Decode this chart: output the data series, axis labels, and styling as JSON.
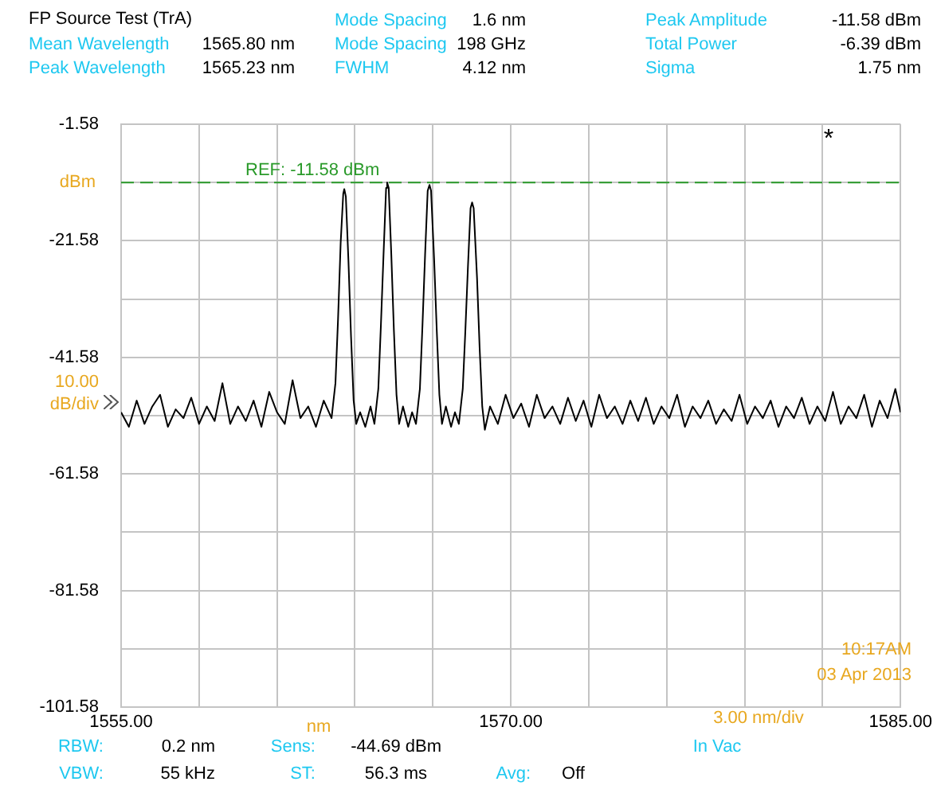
{
  "chart_data": {
    "type": "line",
    "title": "FP Source Test (TrA)",
    "xlabel": "nm",
    "ylabel": "dBm",
    "annotations": [
      "Mode Spacing",
      "1.6 nm",
      "Peak Amplitude",
      "-11.58 dBm",
      "Mean Wavelength",
      "1565.80 nm",
      "Mode Spacing",
      "198 GHz",
      "Total Power",
      "-6.39 dBm",
      "Peak Wavelength",
      "1565.23 nm",
      "FWHM",
      "4.12 nm",
      "Sigma",
      "1.75 nm",
      "10.00 dB/div",
      "3.00 nm/div",
      "10:17AM",
      "03 Apr 2013",
      "RBW:",
      "0.2 nm",
      "Sens:",
      "-44.69 dBm",
      "In Vac",
      "VBW:",
      "55 kHz",
      "ST:",
      "56.3 ms",
      "Avg:",
      "Off",
      "*"
    ],
    "series": [
      {
        "color": "#000000",
        "x": [
          1555,
          1555.3,
          1555.6,
          1555.9,
          1556.2,
          1556.5,
          1556.8,
          1557.1,
          1557.4,
          1557.7,
          1558,
          1558.3,
          1558.6,
          1558.9,
          1559.2,
          1559.5,
          1559.8,
          1560.1,
          1560.4,
          1560.7,
          1561,
          1561.3,
          1561.6,
          1561.9,
          1562.2,
          1562.5,
          1562.8,
          1563.1,
          1563.25,
          1563.35,
          1563.45,
          1563.55,
          1563.59,
          1563.65,
          1563.75,
          1563.85,
          1563.95,
          1564.05,
          1564.2,
          1564.4,
          1564.6,
          1564.75,
          1564.9,
          1565,
          1565.1,
          1565.2,
          1565.24,
          1565.3,
          1565.4,
          1565.5,
          1565.6,
          1565.7,
          1565.85,
          1566.05,
          1566.2,
          1566.35,
          1566.5,
          1566.6,
          1566.7,
          1566.8,
          1566.87,
          1566.93,
          1567.05,
          1567.15,
          1567.25,
          1567.35,
          1567.5,
          1567.7,
          1567.85,
          1568,
          1568.15,
          1568.25,
          1568.35,
          1568.45,
          1568.51,
          1568.57,
          1568.7,
          1568.8,
          1568.9,
          1569,
          1569.2,
          1569.5,
          1569.8,
          1570.1,
          1570.4,
          1570.7,
          1571,
          1571.3,
          1571.6,
          1571.9,
          1572.2,
          1572.5,
          1572.8,
          1573.1,
          1573.4,
          1573.7,
          1574,
          1574.3,
          1574.6,
          1574.9,
          1575.2,
          1575.5,
          1575.8,
          1576.1,
          1576.4,
          1576.7,
          1577,
          1577.3,
          1577.6,
          1577.9,
          1578.2,
          1578.5,
          1578.8,
          1579.1,
          1579.4,
          1579.7,
          1580,
          1580.3,
          1580.6,
          1580.9,
          1581.2,
          1581.5,
          1581.8,
          1582.1,
          1582.4,
          1582.7,
          1583,
          1583.3,
          1583.6,
          1583.9,
          1584.2,
          1584.5,
          1584.8,
          1585
        ],
        "values": [
          -51,
          -53.5,
          -49,
          -53,
          -50,
          -48,
          -53.5,
          -50.5,
          -52,
          -48.5,
          -53,
          -50,
          -52.5,
          -46,
          -53,
          -50,
          -52.5,
          -49,
          -53.5,
          -47.5,
          -51,
          -53,
          -45.5,
          -52,
          -50,
          -53.5,
          -49,
          -52,
          -46,
          -35,
          -22,
          -13.5,
          -12.7,
          -14,
          -25,
          -38,
          -49,
          -53,
          -51,
          -53.5,
          -50,
          -53,
          -47,
          -36,
          -24,
          -12.5,
          -11.58,
          -12.5,
          -24,
          -37,
          -48,
          -53,
          -50,
          -53.5,
          -51,
          -53,
          -47,
          -36,
          -24,
          -13,
          -12,
          -13,
          -25,
          -37,
          -48,
          -53,
          -50,
          -53.5,
          -51,
          -53,
          -47,
          -37,
          -26,
          -16,
          -15,
          -16,
          -28,
          -40,
          -50,
          -54,
          -50,
          -53,
          -48,
          -52,
          -49.5,
          -53.5,
          -48,
          -52,
          -50,
          -53,
          -48.5,
          -52.5,
          -49,
          -53.5,
          -48,
          -52,
          -50,
          -53,
          -49,
          -52.5,
          -48.5,
          -53,
          -50,
          -52,
          -48,
          -53.5,
          -50,
          -52,
          -49,
          -53,
          -50.5,
          -52.5,
          -48,
          -53,
          -50,
          -52,
          -49,
          -53.5,
          -50,
          -52,
          -48.5,
          -53,
          -50,
          -52.5,
          -47.5,
          -53,
          -50,
          -52,
          -48,
          -53.5,
          -49,
          -52,
          -47,
          -51
        ]
      }
    ],
    "xlim": [
      1555,
      1585
    ],
    "xticks": [
      {
        "value": 1555,
        "label": "1555.00"
      },
      {
        "value": 1558,
        "label": null
      },
      {
        "value": 1561,
        "label": null
      },
      {
        "value": 1564,
        "label": null
      },
      {
        "value": 1567,
        "label": null
      },
      {
        "value": 1570,
        "label": "1570.00"
      },
      {
        "value": 1573,
        "label": null
      },
      {
        "value": 1576,
        "label": null
      },
      {
        "value": 1579,
        "label": null
      },
      {
        "value": 1582,
        "label": null
      },
      {
        "value": 1585,
        "label": "1585.00"
      }
    ],
    "ylim": [
      -101.58,
      -1.58
    ],
    "yticks": [
      -101.58,
      {
        "value": -91.58,
        "label": null
      },
      -81.58,
      {
        "value": -71.58,
        "label": null
      },
      -61.58,
      {
        "value": -51.58,
        "label": null
      },
      -41.58,
      {
        "value": -31.58,
        "label": null
      },
      -21.58,
      {
        "value": -11.58,
        "label": null
      },
      -1.58
    ],
    "ref_lines": [
      {
        "axis": "y",
        "value": -11.58,
        "label": "REF: -11.58 dBm",
        "color": "#2a9a2a",
        "line_style": "dashed"
      }
    ],
    "grid": true,
    "legend": false,
    "marker": "none",
    "line_style": "solid"
  }
}
